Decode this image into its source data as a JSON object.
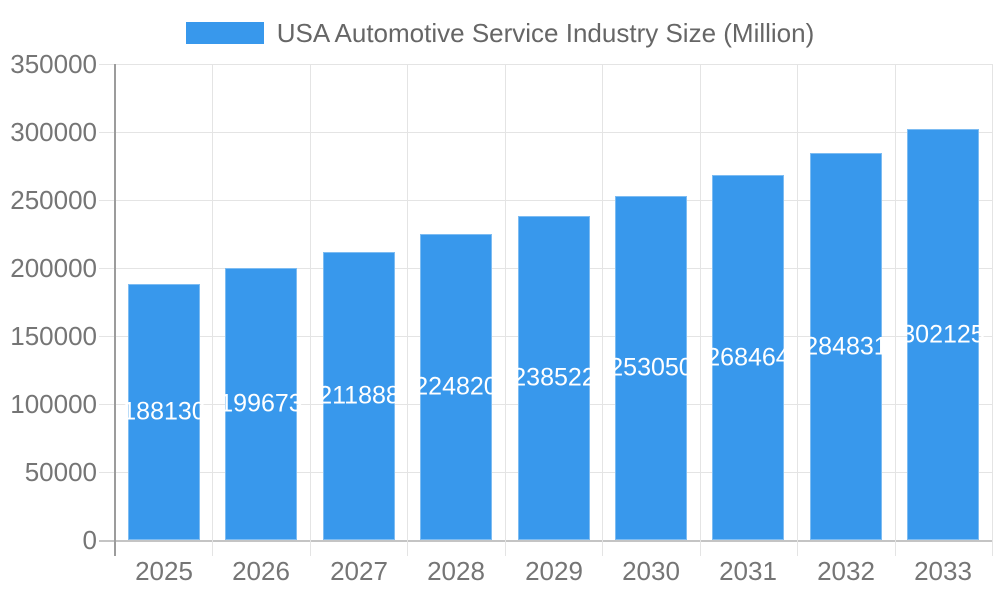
{
  "chart_data": {
    "type": "bar",
    "title": "USA Automotive Service Industry Size (Million)",
    "categories": [
      "2025",
      "2026",
      "2027",
      "2028",
      "2029",
      "2030",
      "2031",
      "2032",
      "2033"
    ],
    "values": [
      188130,
      199673,
      211888,
      224820,
      238522,
      253050,
      268464,
      284831,
      302125
    ],
    "bar_labels": [
      "188130",
      "199673",
      "211888",
      "224820",
      "238522",
      "253050",
      "268464",
      "284831",
      "302125"
    ],
    "xlabel": "",
    "ylabel": "",
    "ylim": [
      0,
      350000
    ],
    "y_ticks": [
      0,
      50000,
      100000,
      150000,
      200000,
      250000,
      300000,
      350000
    ],
    "y_tick_labels": [
      "0",
      "50000",
      "100000",
      "150000",
      "200000",
      "250000",
      "300000",
      "350000"
    ],
    "grid": true,
    "legend_position": "top-center",
    "colors": {
      "bar_fill": "#3898EC",
      "bar_label_text": "#FFFFFF",
      "axis_text": "#757575",
      "legend_text": "#666666",
      "gridline": "#E4E4E4",
      "baseline": "#C4C4C4",
      "y_axis_line": "#9C9C9C"
    }
  }
}
